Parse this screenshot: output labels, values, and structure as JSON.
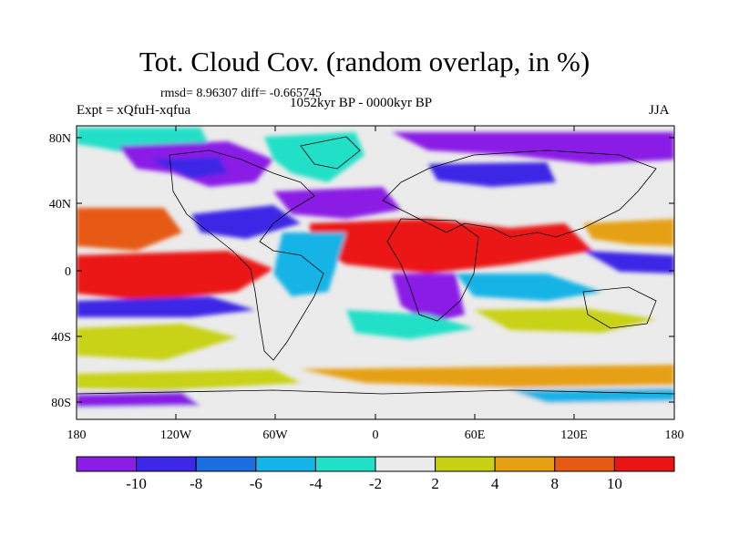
{
  "title": "Tot. Cloud Cov. (random overlap, in %)",
  "stats": "rmsd= 8.96307 diff= -0.665745",
  "experiment": "Expt = xQfuH-xqfua",
  "period": "1052kyr BP - 0000kyr BP",
  "season": "JJA",
  "lat_labels": [
    "80N",
    "40N",
    "0",
    "40S",
    "80S"
  ],
  "lon_labels": [
    "180",
    "120W",
    "60W",
    "0",
    "60E",
    "120E",
    "180"
  ],
  "colorbar": {
    "labels": [
      "-10",
      "-8",
      "-6",
      "-4",
      "-2",
      "2",
      "4",
      "8",
      "10"
    ],
    "colors": [
      "#8a1ee6",
      "#3c28e6",
      "#1a6ee0",
      "#14b4e6",
      "#20e0c8",
      "#ebebeb",
      "#c8d214",
      "#e6a014",
      "#e65a14",
      "#eb1414"
    ]
  },
  "map_colors": {
    "neutral": "#ebebeb",
    "coast": "#000000"
  }
}
